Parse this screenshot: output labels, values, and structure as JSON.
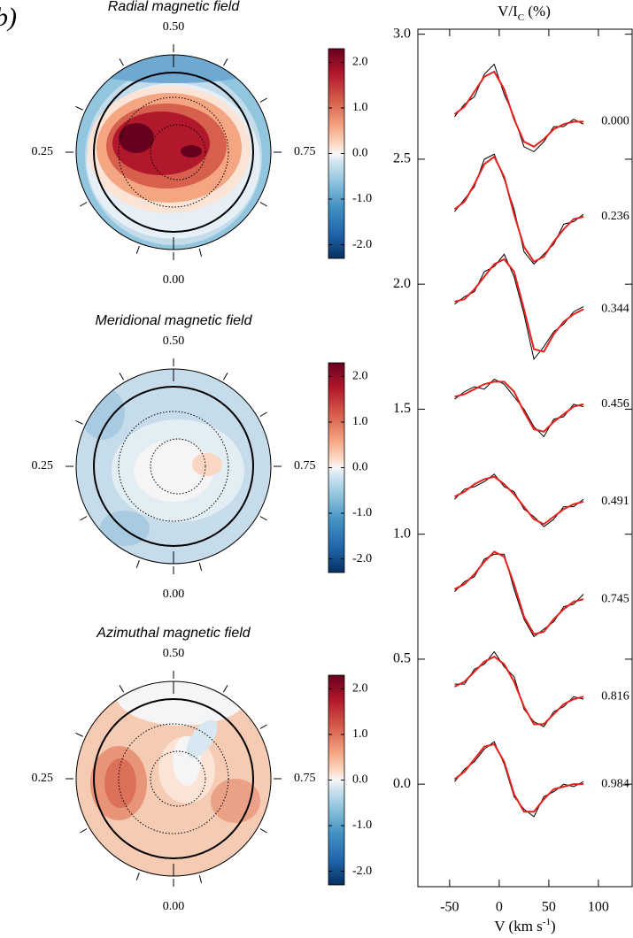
{
  "panel_label": "b)",
  "chart_data": [
    {
      "type": "polar_map",
      "title": "Radial magnetic field",
      "azimuth_labels": {
        "top": "0.50",
        "left": "0.25",
        "right": "0.75",
        "bottom": "0.00"
      },
      "clim": [
        -2.3,
        2.3
      ],
      "cticks": [
        {
          "value": 2,
          "label": "2.0"
        },
        {
          "value": 1,
          "label": "1.0"
        },
        {
          "value": 0,
          "label": "0.0"
        },
        {
          "value": -1,
          "label": "-1.0"
        },
        {
          "value": -2,
          "label": "-2.0"
        }
      ]
    },
    {
      "type": "polar_map",
      "title": "Meridional magnetic field",
      "azimuth_labels": {
        "top": "0.50",
        "left": "0.25",
        "right": "0.75",
        "bottom": "0.00"
      },
      "clim": [
        -2.3,
        2.3
      ],
      "cticks": [
        {
          "value": 2,
          "label": "2.0"
        },
        {
          "value": 1,
          "label": "1.0"
        },
        {
          "value": 0,
          "label": "0.0"
        },
        {
          "value": -1,
          "label": "-1.0"
        },
        {
          "value": -2,
          "label": "-2.0"
        }
      ]
    },
    {
      "type": "polar_map",
      "title": "Azimuthal magnetic field",
      "azimuth_labels": {
        "top": "0.50",
        "left": "0.25",
        "right": "0.75",
        "bottom": "0.00"
      },
      "clim": [
        -2.3,
        2.3
      ],
      "cticks": [
        {
          "value": 2,
          "label": "2.0"
        },
        {
          "value": 1,
          "label": "1.0"
        },
        {
          "value": 0,
          "label": "0.0"
        },
        {
          "value": -1,
          "label": "-1.0"
        },
        {
          "value": -2,
          "label": "-2.0"
        }
      ]
    },
    {
      "type": "line",
      "ylabel": [
        "V/I",
        "C",
        " (%)"
      ],
      "xlabel": [
        "V (km s",
        "-1",
        ")"
      ],
      "xlim": [
        -82,
        134
      ],
      "ylim": [
        -0.41,
        3.02
      ],
      "xticks": [
        -50,
        0,
        50,
        100
      ],
      "yticks": [
        {
          "value": 0,
          "label": "0.0"
        },
        {
          "value": 0.5,
          "label": "0.5"
        },
        {
          "value": 1,
          "label": "1.0"
        },
        {
          "value": 1.5,
          "label": "1.5"
        },
        {
          "value": 2,
          "label": "2.0"
        },
        {
          "value": 2.5,
          "label": "2.5"
        },
        {
          "value": 3,
          "label": "3.0"
        }
      ],
      "x": [
        -45,
        -35,
        -25,
        -15,
        -5,
        5,
        15,
        25,
        35,
        45,
        55,
        65,
        75,
        85
      ],
      "series": [
        {
          "color": "#000000",
          "values": [
            2.67,
            2.72,
            2.75,
            2.84,
            2.88,
            2.76,
            2.67,
            2.55,
            2.53,
            2.57,
            2.63,
            2.63,
            2.66,
            2.64
          ]
        },
        {
          "color": "#000000",
          "values": [
            2.29,
            2.34,
            2.39,
            2.5,
            2.52,
            2.42,
            2.3,
            2.13,
            2.08,
            2.12,
            2.16,
            2.24,
            2.25,
            2.28
          ]
        },
        {
          "color": "#000000",
          "values": [
            1.92,
            1.95,
            1.97,
            2.05,
            2.07,
            2.12,
            2.03,
            1.88,
            1.7,
            1.75,
            1.81,
            1.84,
            1.89,
            1.91
          ]
        },
        {
          "color": "#000000",
          "values": [
            1.54,
            1.57,
            1.59,
            1.58,
            1.62,
            1.6,
            1.55,
            1.5,
            1.43,
            1.39,
            1.46,
            1.47,
            1.52,
            1.51
          ]
        },
        {
          "color": "#000000",
          "values": [
            1.14,
            1.18,
            1.19,
            1.21,
            1.24,
            1.19,
            1.17,
            1.1,
            1.07,
            1.03,
            1.06,
            1.11,
            1.11,
            1.14
          ]
        },
        {
          "color": "#000000",
          "values": [
            0.77,
            0.81,
            0.83,
            0.9,
            0.92,
            0.92,
            0.78,
            0.66,
            0.59,
            0.62,
            0.65,
            0.71,
            0.72,
            0.76
          ]
        },
        {
          "color": "#000000",
          "values": [
            0.4,
            0.4,
            0.46,
            0.48,
            0.53,
            0.47,
            0.43,
            0.3,
            0.25,
            0.23,
            0.29,
            0.31,
            0.35,
            0.34
          ]
        },
        {
          "color": "#000000",
          "values": [
            0.01,
            0.06,
            0.09,
            0.14,
            0.17,
            0.08,
            -0.05,
            -0.1,
            -0.13,
            -0.05,
            -0.03,
            0.0,
            -0.01,
            0.01
          ]
        },
        {
          "label": "0.000",
          "color": "#e8201c",
          "values": [
            2.68,
            2.71,
            2.77,
            2.83,
            2.85,
            2.78,
            2.66,
            2.57,
            2.55,
            2.58,
            2.62,
            2.64,
            2.65,
            2.65
          ]
        },
        {
          "label": "0.236",
          "color": "#e8201c",
          "values": [
            2.3,
            2.33,
            2.4,
            2.48,
            2.51,
            2.43,
            2.28,
            2.15,
            2.09,
            2.11,
            2.17,
            2.22,
            2.26,
            2.27
          ]
        },
        {
          "label": "0.344",
          "color": "#e8201c",
          "values": [
            1.93,
            1.94,
            1.98,
            2.03,
            2.08,
            2.1,
            2.05,
            1.9,
            1.74,
            1.73,
            1.8,
            1.85,
            1.88,
            1.9
          ]
        },
        {
          "label": "0.456",
          "color": "#e8201c",
          "values": [
            1.55,
            1.56,
            1.58,
            1.6,
            1.61,
            1.61,
            1.57,
            1.49,
            1.42,
            1.41,
            1.45,
            1.48,
            1.51,
            1.52
          ]
        },
        {
          "label": "0.491",
          "color": "#e8201c",
          "values": [
            1.15,
            1.17,
            1.2,
            1.22,
            1.23,
            1.2,
            1.16,
            1.11,
            1.06,
            1.04,
            1.07,
            1.1,
            1.12,
            1.13
          ]
        },
        {
          "label": "0.745",
          "color": "#e8201c",
          "values": [
            0.78,
            0.8,
            0.84,
            0.89,
            0.93,
            0.91,
            0.8,
            0.67,
            0.6,
            0.61,
            0.66,
            0.7,
            0.73,
            0.74
          ]
        },
        {
          "label": "0.816",
          "color": "#e8201c",
          "values": [
            0.39,
            0.41,
            0.45,
            0.49,
            0.51,
            0.48,
            0.41,
            0.31,
            0.24,
            0.24,
            0.28,
            0.32,
            0.34,
            0.35
          ]
        },
        {
          "label": "0.984",
          "color": "#e8201c",
          "values": [
            0.02,
            0.05,
            0.1,
            0.15,
            0.16,
            0.09,
            -0.04,
            -0.11,
            -0.11,
            -0.06,
            -0.02,
            -0.01,
            0.0,
            0.0
          ]
        }
      ]
    }
  ]
}
